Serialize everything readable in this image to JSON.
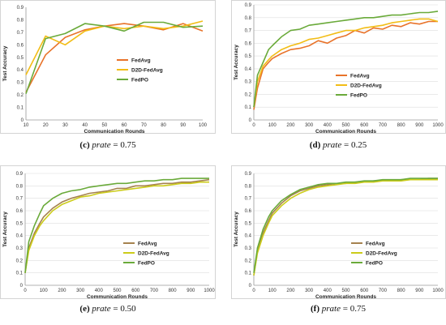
{
  "colors": {
    "FedAvg": "#e8732a",
    "D2D-FedAvg": "#f2bd16",
    "FedPO": "#6aaa3a",
    "FedAvg_e": "#a5824e",
    "D2D-FedAvg_e": "#cccc1a"
  },
  "chart_data": [
    {
      "type": "line",
      "caption_letter": "(c)",
      "caption_var": "prate",
      "caption_value": "= 0.75",
      "xlabel": "Communication Rounds",
      "ylabel": "Test Accuracy",
      "xlim": [
        10,
        100
      ],
      "ylim": [
        0,
        0.9
      ],
      "xticks": [
        "10",
        "20",
        "30",
        "40",
        "50",
        "60",
        "70",
        "80",
        "90",
        "100"
      ],
      "yticks": [
        "0",
        "0.1",
        "0.2",
        "0.3",
        "0.4",
        "0.5",
        "0.6",
        "0.7",
        "0.8",
        "0.9"
      ],
      "grid": false,
      "legend": "center-right",
      "series": [
        {
          "name": "FedAvg",
          "x": [
            10,
            20,
            30,
            40,
            50,
            60,
            70,
            80,
            90,
            100
          ],
          "values": [
            0.22,
            0.52,
            0.66,
            0.72,
            0.75,
            0.77,
            0.75,
            0.72,
            0.77,
            0.71
          ]
        },
        {
          "name": "D2D-FedAvg",
          "x": [
            10,
            20,
            30,
            40,
            50,
            60,
            70,
            80,
            90,
            100
          ],
          "values": [
            0.36,
            0.67,
            0.6,
            0.71,
            0.75,
            0.73,
            0.75,
            0.73,
            0.75,
            0.79
          ]
        },
        {
          "name": "FedPO",
          "x": [
            10,
            20,
            30,
            40,
            50,
            60,
            70,
            80,
            90,
            100
          ],
          "values": [
            0.21,
            0.65,
            0.69,
            0.77,
            0.75,
            0.71,
            0.78,
            0.78,
            0.74,
            0.75
          ]
        }
      ]
    },
    {
      "type": "line",
      "caption_letter": "(d)",
      "caption_var": "prate",
      "caption_value": "= 0.25",
      "xlabel": "Communication Rounds",
      "ylabel": "Test Accuracy",
      "xlim": [
        0,
        1000
      ],
      "ylim": [
        0,
        0.9
      ],
      "xticks": [
        "0",
        "100",
        "200",
        "300",
        "400",
        "500",
        "600",
        "700",
        "800",
        "900",
        "1000"
      ],
      "yticks": [
        "0",
        "0.1",
        "0.2",
        "0.3",
        "0.4",
        "0.5",
        "0.6",
        "0.7",
        "0.8",
        "0.9"
      ],
      "grid": true,
      "legend": "center-right",
      "series": [
        {
          "name": "FedAvg",
          "x": [
            0,
            20,
            50,
            80,
            100,
            150,
            200,
            250,
            300,
            350,
            400,
            450,
            500,
            550,
            600,
            650,
            700,
            750,
            800,
            850,
            900,
            950,
            1000
          ],
          "values": [
            0.08,
            0.25,
            0.4,
            0.45,
            0.48,
            0.52,
            0.55,
            0.56,
            0.58,
            0.62,
            0.6,
            0.64,
            0.66,
            0.7,
            0.68,
            0.72,
            0.71,
            0.74,
            0.73,
            0.76,
            0.75,
            0.77,
            0.77
          ]
        },
        {
          "name": "D2D-FedAvg",
          "x": [
            0,
            20,
            50,
            80,
            100,
            150,
            200,
            250,
            300,
            350,
            400,
            450,
            500,
            550,
            600,
            650,
            700,
            750,
            800,
            850,
            900,
            950,
            1000
          ],
          "values": [
            0.1,
            0.3,
            0.42,
            0.47,
            0.5,
            0.55,
            0.58,
            0.6,
            0.63,
            0.64,
            0.66,
            0.68,
            0.7,
            0.7,
            0.72,
            0.73,
            0.74,
            0.76,
            0.77,
            0.78,
            0.79,
            0.79,
            0.77
          ]
        },
        {
          "name": "FedPO",
          "x": [
            0,
            20,
            50,
            80,
            100,
            150,
            200,
            250,
            300,
            350,
            400,
            450,
            500,
            550,
            600,
            650,
            700,
            750,
            800,
            850,
            900,
            950,
            1000
          ],
          "values": [
            0.1,
            0.35,
            0.45,
            0.55,
            0.58,
            0.65,
            0.7,
            0.71,
            0.74,
            0.75,
            0.76,
            0.77,
            0.78,
            0.79,
            0.8,
            0.8,
            0.81,
            0.82,
            0.82,
            0.83,
            0.84,
            0.84,
            0.85
          ]
        }
      ]
    },
    {
      "type": "line",
      "caption_letter": "(e)",
      "caption_var": "prate",
      "caption_value": "= 0.50",
      "xlabel": "Communication Rounds",
      "ylabel": "Test Accuracy",
      "xlim": [
        0,
        1000
      ],
      "ylim": [
        0,
        0.9
      ],
      "xticks": [
        "0",
        "100",
        "200",
        "300",
        "400",
        "500",
        "600",
        "700",
        "800",
        "900",
        "1000"
      ],
      "yticks": [
        "0",
        "0.1",
        "0.2",
        "0.3",
        "0.4",
        "0.5",
        "0.6",
        "0.7",
        "0.8",
        "0.9"
      ],
      "grid": true,
      "legend": "center-right",
      "series": [
        {
          "name": "FedAvg",
          "x": [
            0,
            20,
            50,
            80,
            100,
            150,
            200,
            250,
            300,
            350,
            400,
            450,
            500,
            550,
            600,
            650,
            700,
            750,
            800,
            850,
            900,
            950,
            1000
          ],
          "values": [
            0.1,
            0.3,
            0.42,
            0.5,
            0.55,
            0.62,
            0.67,
            0.7,
            0.72,
            0.74,
            0.75,
            0.76,
            0.78,
            0.78,
            0.8,
            0.8,
            0.81,
            0.82,
            0.82,
            0.83,
            0.83,
            0.84,
            0.85
          ]
        },
        {
          "name": "D2D-FedAvg",
          "x": [
            0,
            20,
            50,
            80,
            100,
            150,
            200,
            250,
            300,
            350,
            400,
            450,
            500,
            550,
            600,
            650,
            700,
            750,
            800,
            850,
            900,
            950,
            1000
          ],
          "values": [
            0.1,
            0.28,
            0.4,
            0.48,
            0.52,
            0.6,
            0.65,
            0.68,
            0.71,
            0.72,
            0.74,
            0.75,
            0.76,
            0.77,
            0.78,
            0.79,
            0.8,
            0.8,
            0.81,
            0.82,
            0.82,
            0.83,
            0.83
          ]
        },
        {
          "name": "FedPO",
          "x": [
            0,
            20,
            50,
            80,
            100,
            150,
            200,
            250,
            300,
            350,
            400,
            450,
            500,
            550,
            600,
            650,
            700,
            750,
            800,
            850,
            900,
            950,
            1000
          ],
          "values": [
            0.1,
            0.35,
            0.48,
            0.58,
            0.64,
            0.7,
            0.74,
            0.76,
            0.77,
            0.79,
            0.8,
            0.81,
            0.82,
            0.82,
            0.83,
            0.84,
            0.84,
            0.85,
            0.85,
            0.86,
            0.86,
            0.86,
            0.86
          ]
        }
      ]
    },
    {
      "type": "line",
      "caption_letter": "(f)",
      "caption_var": "prate",
      "caption_value": "= 0.75",
      "xlabel": "Communication Rounds",
      "ylabel": "Test Accuracy",
      "xlim": [
        0,
        1000
      ],
      "ylim": [
        0,
        0.9
      ],
      "xticks": [
        "0",
        "100",
        "200",
        "300",
        "400",
        "500",
        "600",
        "700",
        "800",
        "900",
        "1000"
      ],
      "yticks": [
        "0",
        "0.1",
        "0.2",
        "0.3",
        "0.4",
        "0.5",
        "0.6",
        "0.7",
        "0.8",
        "0.9"
      ],
      "grid": true,
      "legend": "center-right",
      "series": [
        {
          "name": "FedAvg",
          "x": [
            0,
            20,
            50,
            80,
            100,
            150,
            200,
            250,
            300,
            350,
            400,
            450,
            500,
            550,
            600,
            650,
            700,
            750,
            800,
            850,
            900,
            950,
            1000
          ],
          "values": [
            0.08,
            0.28,
            0.42,
            0.52,
            0.58,
            0.66,
            0.72,
            0.76,
            0.78,
            0.8,
            0.81,
            0.82,
            0.82,
            0.83,
            0.83,
            0.84,
            0.84,
            0.84,
            0.85,
            0.85,
            0.85,
            0.86,
            0.86
          ]
        },
        {
          "name": "D2D-FedAvg",
          "x": [
            0,
            20,
            50,
            80,
            100,
            150,
            200,
            250,
            300,
            350,
            400,
            450,
            500,
            550,
            600,
            650,
            700,
            750,
            800,
            850,
            900,
            950,
            1000
          ],
          "values": [
            0.08,
            0.26,
            0.4,
            0.5,
            0.56,
            0.64,
            0.7,
            0.74,
            0.77,
            0.79,
            0.8,
            0.81,
            0.82,
            0.82,
            0.83,
            0.83,
            0.84,
            0.84,
            0.84,
            0.85,
            0.85,
            0.85,
            0.85
          ]
        },
        {
          "name": "FedPO",
          "x": [
            0,
            20,
            50,
            80,
            100,
            150,
            200,
            250,
            300,
            350,
            400,
            450,
            500,
            550,
            600,
            650,
            700,
            750,
            800,
            850,
            900,
            950,
            1000
          ],
          "values": [
            0.1,
            0.3,
            0.45,
            0.55,
            0.6,
            0.68,
            0.73,
            0.77,
            0.79,
            0.81,
            0.82,
            0.82,
            0.83,
            0.83,
            0.84,
            0.84,
            0.85,
            0.85,
            0.85,
            0.86,
            0.86,
            0.86,
            0.86
          ]
        }
      ]
    }
  ]
}
